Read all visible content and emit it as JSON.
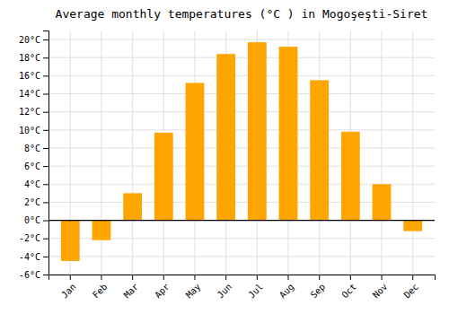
{
  "chart_data": {
    "type": "bar",
    "title": "Average monthly temperatures (°C ) in Mogoşeşti-Siret",
    "categories": [
      "Jan",
      "Feb",
      "Mar",
      "Apr",
      "May",
      "Jun",
      "Jul",
      "Aug",
      "Sep",
      "Oct",
      "Nov",
      "Dec"
    ],
    "values": [
      -4.5,
      -2.2,
      3.0,
      9.7,
      15.2,
      18.4,
      19.7,
      19.2,
      15.5,
      9.8,
      4.0,
      -1.2
    ],
    "color": "#FFA500",
    "ylim": [
      -6,
      21
    ],
    "yticks": [
      {
        "value": -6,
        "label": "-6°C"
      },
      {
        "value": -4,
        "label": "-4°C"
      },
      {
        "value": -2,
        "label": "-2°C"
      },
      {
        "value": 0,
        "label": "0°C"
      },
      {
        "value": 2,
        "label": "2°C"
      },
      {
        "value": 4,
        "label": "4°C"
      },
      {
        "value": 6,
        "label": "6°C"
      },
      {
        "value": 8,
        "label": "8°C"
      },
      {
        "value": 10,
        "label": "10°C"
      },
      {
        "value": 12,
        "label": "12°C"
      },
      {
        "value": 14,
        "label": "14°C"
      },
      {
        "value": 16,
        "label": "16°C"
      },
      {
        "value": 18,
        "label": "18°C"
      },
      {
        "value": 20,
        "label": "20°C"
      }
    ],
    "grid": true
  }
}
